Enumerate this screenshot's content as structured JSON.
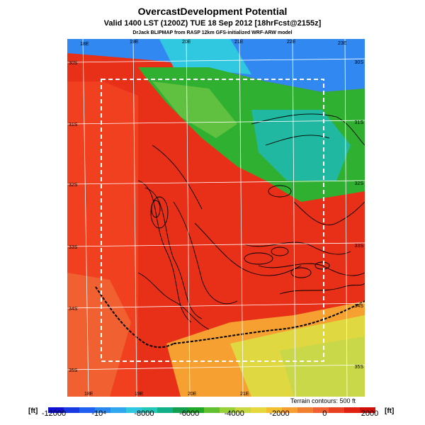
{
  "header": {
    "title": "OvercastDevelopment Potential",
    "subtitle": "Valid 1400 LST (1200Z) TUE 18 Sep 2012 [18hrFcst@2155z]",
    "credit": "DrJack BLIPMAP from RASP 12km GFS-initialized WRF-ARW model"
  },
  "map": {
    "top_lon_labels": [
      "18E",
      "19E",
      "20E",
      "21E",
      "22E",
      "23E"
    ],
    "bottom_lon_labels": [
      "18E",
      "19E",
      "20E",
      "21E"
    ],
    "left_lat_labels": [
      "30S",
      "31S",
      "32S",
      "33S",
      "34S",
      "35S"
    ],
    "right_lat_labels": [
      "30S",
      "31S",
      "32S",
      "33S",
      "34S",
      "35S"
    ],
    "terrain_note": "Terrain contours: 500 ft",
    "colors": {
      "deep_red": "#e83018",
      "red": "#f04020",
      "orange_red": "#f06030",
      "orange": "#f5a030",
      "yellow": "#e0d840",
      "yellow_green": "#c8d848",
      "green": "#30b030",
      "light_green": "#60c040",
      "teal": "#20b8a0",
      "cyan": "#30c8e0",
      "blue": "#3088f0"
    }
  },
  "colorbar": {
    "unit_left": "[ft]",
    "unit_right": "[ft]",
    "tick_labels": [
      "-12000",
      "-10⁴",
      "-8000",
      "-6000",
      "-4000",
      "-2000",
      "0",
      "2000"
    ],
    "colors": [
      "#1010d0",
      "#1838e0",
      "#2060f0",
      "#2888f0",
      "#30a8f0",
      "#30c8e0",
      "#20c8b8",
      "#10b088",
      "#10a050",
      "#20a828",
      "#60c030",
      "#98d038",
      "#c8d840",
      "#e8d840",
      "#f0c030",
      "#f5a030",
      "#f08030",
      "#f06030",
      "#e84020",
      "#e02010",
      "#d01008"
    ]
  }
}
